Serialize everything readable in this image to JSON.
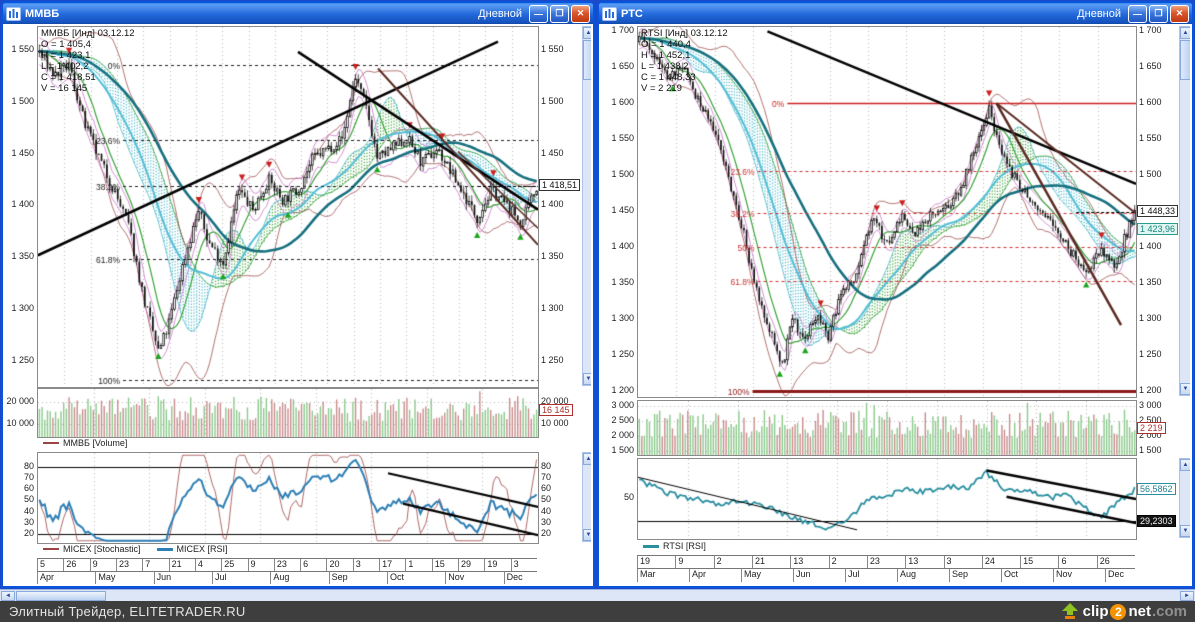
{
  "statusbar": {
    "text": "Элитный Трейдер, ELITETRADER.RU",
    "logo_clip": "clip",
    "logo_2": "2",
    "logo_net": "net",
    "logo_com": ".com"
  },
  "windows": [
    {
      "title": "ММВБ",
      "timeframe": "Дневной",
      "legend": [
        "ММВБ [Инд] 03.12.12",
        "O = 1 405,4",
        "H = 1 423,1",
        "L = 1 402,2",
        "C = 1 418,51",
        "V = 16 145"
      ],
      "volume_legend": "ММВБ [Volume]",
      "osc_legend": [
        "MICEX [Stochastic]",
        "MICEX [RSI]"
      ]
    },
    {
      "title": "РТС",
      "timeframe": "Дневной",
      "legend": [
        "RTSI [Инд] 03.12.12",
        "O = 1 440,4",
        "H = 1 452,1",
        "L = 1 438,2",
        "C = 1 448,33",
        "V = 2 219"
      ],
      "volume_legend": "",
      "osc_legend": [
        "RTSI [RSI]"
      ]
    }
  ],
  "theme": {
    "up_arrow": "#1ca51c",
    "down_arrow": "#cc1f1f",
    "stoch": "#9c4343",
    "rsi": "#2e7fb5",
    "rsi_rts": "#2a8fa0",
    "vol_up": "#8cc98c",
    "vol_down": "#c98c8c",
    "cloud_a": "#3aa33a",
    "cloud_b": "#49b8c9",
    "ma_slow": "#17707f",
    "ma_mid": "#53bdd6",
    "ma_fast": "#3aa33a",
    "env": "#a05050",
    "env2": "#c878c8",
    "grid": "#b9b9b9",
    "trend": "#000000",
    "trend_brown": "#5a2a22"
  },
  "chart_data": [
    {
      "type": "candlestick",
      "symbol": "MICEX",
      "timeframe": "daily",
      "candles_count": 185,
      "seed": 7,
      "noise": 7,
      "price": {
        "ylim": [
          1225,
          1572
        ],
        "y_ticks": [
          "1 550",
          "1 500",
          "1 450",
          "1 400",
          "1 350",
          "1 300",
          "1 250"
        ],
        "highlights": [
          {
            "label": "1 418,51",
            "value": 1418.51,
            "style": "plain"
          }
        ],
        "last_value": 1418.51,
        "ohlc": {
          "open": 1405.4,
          "high": 1423.1,
          "low": 1402.2,
          "close": 1418.51,
          "volume": 16145,
          "date": "03.12.12"
        },
        "fib": {
          "from": 0.17,
          "color": "#222222",
          "levels": [
            {
              "label": "0%",
              "value": 1535
            },
            {
              "label": "23.6%",
              "value": 1463
            },
            {
              "label": "38.2%",
              "value": 1419
            },
            {
              "label": "61.8%",
              "value": 1348
            },
            {
              "label": "100%",
              "value": 1232
            }
          ]
        },
        "waypoints": [
          [
            0,
            1548
          ],
          [
            0.03,
            1525
          ],
          [
            0.06,
            1535
          ],
          [
            0.09,
            1480
          ],
          [
            0.12,
            1445
          ],
          [
            0.15,
            1415
          ],
          [
            0.18,
            1380
          ],
          [
            0.21,
            1310
          ],
          [
            0.24,
            1258
          ],
          [
            0.26,
            1285
          ],
          [
            0.29,
            1345
          ],
          [
            0.32,
            1395
          ],
          [
            0.34,
            1365
          ],
          [
            0.37,
            1345
          ],
          [
            0.4,
            1415
          ],
          [
            0.43,
            1395
          ],
          [
            0.46,
            1425
          ],
          [
            0.49,
            1405
          ],
          [
            0.52,
            1415
          ],
          [
            0.55,
            1445
          ],
          [
            0.58,
            1455
          ],
          [
            0.61,
            1465
          ],
          [
            0.635,
            1525
          ],
          [
            0.66,
            1490
          ],
          [
            0.68,
            1445
          ],
          [
            0.71,
            1455
          ],
          [
            0.74,
            1465
          ],
          [
            0.77,
            1440
          ],
          [
            0.8,
            1455
          ],
          [
            0.83,
            1430
          ],
          [
            0.86,
            1405
          ],
          [
            0.88,
            1388
          ],
          [
            0.91,
            1415
          ],
          [
            0.94,
            1400
          ],
          [
            0.97,
            1382
          ],
          [
            1,
            1418
          ]
        ],
        "trendlines": [
          {
            "x1": 0.0,
            "p1": 1352,
            "x2": 0.92,
            "p2": 1558,
            "color": "#000000",
            "width": 2.5
          },
          {
            "x1": 0.52,
            "p1": 1548,
            "x2": 1.0,
            "p2": 1396,
            "color": "#000000",
            "width": 2.5
          },
          {
            "x1": 0.68,
            "p1": 1532,
            "x2": 1.0,
            "p2": 1362,
            "color": "#5a2a22",
            "width": 2
          },
          {
            "x1": 0.84,
            "p1": 1452,
            "x2": 1.0,
            "p2": 1378,
            "color": "#5a2a22",
            "width": 1.5
          }
        ]
      },
      "volume": {
        "ylim": [
          4000,
          26000
        ],
        "y_ticks": [
          "20 000",
          "10 000"
        ],
        "highlight": {
          "label": "16 145",
          "value": 16145,
          "style": "red"
        },
        "seed": 11
      },
      "oscillator": {
        "kind": "stoch+rsi",
        "ylim": [
          12,
          92
        ],
        "y_ticks": [
          "80",
          "70",
          "60",
          "50",
          "40",
          "30",
          "20"
        ],
        "hlines": [
          80,
          20
        ],
        "trendlines": [
          {
            "x1": 0.7,
            "v1": 74,
            "x2": 1.0,
            "v2": 44,
            "width": 2.2
          },
          {
            "x1": 0.73,
            "v1": 47,
            "x2": 1.0,
            "v2": 19,
            "width": 2.2
          }
        ],
        "highlights": []
      },
      "x_days": [
        "5",
        "26",
        "9",
        "23",
        "7",
        "21",
        "4",
        "25",
        "9",
        "23",
        "6",
        "20",
        "3",
        "17",
        "1",
        "15",
        "29",
        "19",
        "3"
      ],
      "x_months": [
        "Apr",
        "May",
        "Jun",
        "Jul",
        "Aug",
        "Sep",
        "Oct",
        "Nov",
        "Dec"
      ]
    },
    {
      "type": "candlestick",
      "symbol": "RTSI",
      "timeframe": "daily",
      "candles_count": 195,
      "seed": 21,
      "noise": 9,
      "price": {
        "ylim": [
          1192,
          1706
        ],
        "y_ticks": [
          "1 700",
          "1 650",
          "1 600",
          "1 550",
          "1 500",
          "1 450",
          "1 400",
          "1 350",
          "1 300",
          "1 250",
          "1 200"
        ],
        "highlights": [
          {
            "label": "1 448,33",
            "value": 1448.33,
            "style": "plain"
          },
          {
            "label": "1 423,96",
            "value": 1423.96,
            "style": "cyan"
          }
        ],
        "last_value": 1448.33,
        "ohlc": {
          "open": 1440.4,
          "high": 1452.1,
          "low": 1438.2,
          "close": 1448.33,
          "volume": 2219,
          "date": "03.12.12"
        },
        "fib": {
          "from": 0.24,
          "color": "#cc3333",
          "levels": [
            {
              "label": "0%",
              "value": 1600,
              "solid": true,
              "color": "#cc2222",
              "width": 1.5,
              "from": 0.3
            },
            {
              "label": "23.6%",
              "value": 1506
            },
            {
              "label": "38.2%",
              "value": 1447
            },
            {
              "label": "50%",
              "value": 1400
            },
            {
              "label": "61.8%",
              "value": 1353
            },
            {
              "label": "100%",
              "value": 1200,
              "solid": true,
              "color": "#8b1a1a",
              "width": 3,
              "from": 0.23
            }
          ]
        },
        "waypoints": [
          [
            0,
            1690
          ],
          [
            0.03,
            1665
          ],
          [
            0.06,
            1635
          ],
          [
            0.09,
            1655
          ],
          [
            0.12,
            1600
          ],
          [
            0.15,
            1565
          ],
          [
            0.18,
            1500
          ],
          [
            0.21,
            1420
          ],
          [
            0.24,
            1330
          ],
          [
            0.265,
            1285
          ],
          [
            0.29,
            1235
          ],
          [
            0.31,
            1305
          ],
          [
            0.33,
            1270
          ],
          [
            0.36,
            1305
          ],
          [
            0.38,
            1275
          ],
          [
            0.41,
            1340
          ],
          [
            0.44,
            1365
          ],
          [
            0.47,
            1440
          ],
          [
            0.5,
            1405
          ],
          [
            0.53,
            1440
          ],
          [
            0.56,
            1420
          ],
          [
            0.59,
            1445
          ],
          [
            0.62,
            1455
          ],
          [
            0.65,
            1480
          ],
          [
            0.68,
            1545
          ],
          [
            0.705,
            1595
          ],
          [
            0.73,
            1530
          ],
          [
            0.76,
            1495
          ],
          [
            0.79,
            1465
          ],
          [
            0.82,
            1440
          ],
          [
            0.85,
            1415
          ],
          [
            0.88,
            1385
          ],
          [
            0.9,
            1360
          ],
          [
            0.93,
            1395
          ],
          [
            0.96,
            1375
          ],
          [
            1,
            1448
          ]
        ],
        "trendlines": [
          {
            "x1": 0.26,
            "p1": 1700,
            "x2": 1.0,
            "p2": 1488,
            "color": "#000000",
            "width": 2.5
          },
          {
            "x1": 0.72,
            "p1": 1600,
            "x2": 1.0,
            "p2": 1447,
            "color": "#5a2a22",
            "width": 2
          },
          {
            "x1": 0.72,
            "p1": 1600,
            "x2": 0.97,
            "p2": 1292,
            "color": "#5a2a22",
            "width": 2.5
          }
        ]
      },
      "volume": {
        "ylim": [
          1350,
          3150
        ],
        "y_ticks": [
          "3 000",
          "2 500",
          "2 000",
          "1 500"
        ],
        "highlight": {
          "label": "2 219",
          "value": 2219,
          "style": "red"
        },
        "seed": 31
      },
      "oscillator": {
        "kind": "rsi",
        "ylim": [
          14,
          84
        ],
        "y_ticks": [
          "50"
        ],
        "hlines": [
          30
        ],
        "waypoints": [
          [
            0,
            66
          ],
          [
            0.05,
            55
          ],
          [
            0.1,
            50
          ],
          [
            0.15,
            45
          ],
          [
            0.2,
            47
          ],
          [
            0.25,
            43
          ],
          [
            0.3,
            35
          ],
          [
            0.35,
            27
          ],
          [
            0.38,
            22
          ],
          [
            0.42,
            30
          ],
          [
            0.46,
            48
          ],
          [
            0.5,
            52
          ],
          [
            0.54,
            58
          ],
          [
            0.58,
            55
          ],
          [
            0.62,
            60
          ],
          [
            0.66,
            58
          ],
          [
            0.7,
            73
          ],
          [
            0.74,
            55
          ],
          [
            0.78,
            57
          ],
          [
            0.82,
            50
          ],
          [
            0.86,
            52
          ],
          [
            0.9,
            42
          ],
          [
            0.93,
            32
          ],
          [
            0.97,
            48
          ],
          [
            1,
            57
          ]
        ],
        "trendlines": [
          {
            "x1": 0.0,
            "v1": 68,
            "x2": 0.44,
            "v2": 22,
            "width": 1
          },
          {
            "x1": 0.7,
            "v1": 74,
            "x2": 1.0,
            "v2": 49,
            "width": 2.5
          },
          {
            "x1": 0.74,
            "v1": 51,
            "x2": 1.0,
            "v2": 28,
            "width": 2.5
          }
        ],
        "highlights": [
          {
            "label": "56,5862",
            "value": 57,
            "style": "teal"
          },
          {
            "label": "29,2303",
            "value": 29,
            "style": "black"
          }
        ]
      },
      "x_days": [
        "19",
        "9",
        "2",
        "21",
        "13",
        "2",
        "23",
        "13",
        "3",
        "24",
        "15",
        "6",
        "26"
      ],
      "x_months": [
        "Mar",
        "Apr",
        "May",
        "Jun",
        "Jul",
        "Aug",
        "Sep",
        "Oct",
        "Nov",
        "Dec"
      ]
    }
  ]
}
